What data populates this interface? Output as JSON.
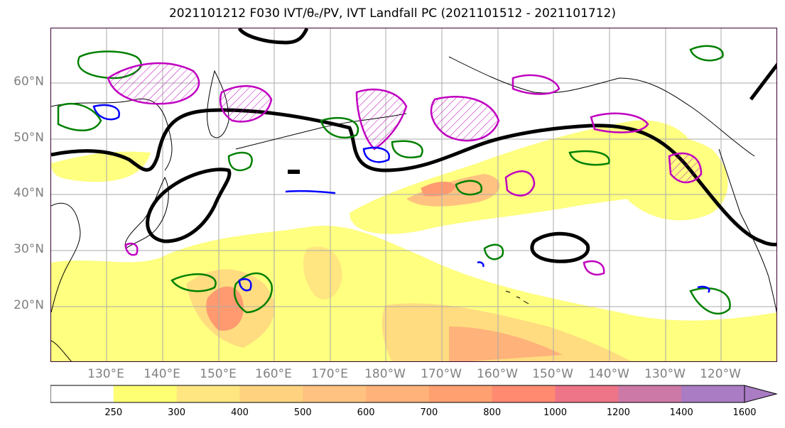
{
  "title": "2021101212 F030 IVT/θₑ/PV, IVT Landfall PC (2021101512 - 2021101712)",
  "lat_labels": [
    "60°N",
    "50°N",
    "40°N",
    "30°N",
    "20°N"
  ],
  "lon_labels": [
    "130°E",
    "140°E",
    "150°E",
    "160°E",
    "170°E",
    "180°W",
    "170°W",
    "160°W",
    "150°W",
    "140°W",
    "130°W",
    "120°W"
  ],
  "colorbar": {
    "ticks": [
      "250",
      "300",
      "400",
      "500",
      "600",
      "700",
      "800",
      "1000",
      "1200",
      "1400",
      "1600"
    ],
    "colors": [
      "#ffffff",
      "#ffff73",
      "#ffe680",
      "#ffd280",
      "#ffc280",
      "#ffb27a",
      "#ffa070",
      "#ff8a70",
      "#ee7488",
      "#cc79a7",
      "#a97cc3"
    ]
  },
  "contour_colors": {
    "pv_outline": "#000000",
    "theta_e": "#008000",
    "pv_anomaly": "#c000c0",
    "ivt_cold": "#0000ff"
  }
}
